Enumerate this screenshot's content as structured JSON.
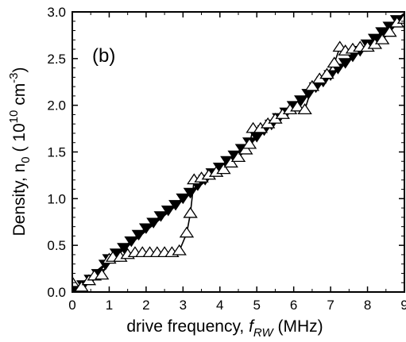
{
  "chart_data": {
    "type": "line",
    "panel_label": "(b)",
    "xlabel_prefix": "drive frequency, ",
    "xlabel_var": "f",
    "xlabel_sub": "RW",
    "xlabel_unit": " (MHz)",
    "ylabel_prefix": "Density, n",
    "ylabel_sub": "0",
    "ylabel_unit_open": " ( 10",
    "ylabel_unit_sup1": "10",
    "ylabel_unit_mid": " cm",
    "ylabel_unit_sup2": "-3",
    "ylabel_unit_close": ")",
    "xlim": [
      0,
      9
    ],
    "ylim": [
      0,
      3.0
    ],
    "xticks": [
      0,
      1,
      2,
      3,
      4,
      5,
      6,
      7,
      8,
      9
    ],
    "yticks": [
      0.0,
      0.5,
      1.0,
      1.5,
      2.0,
      2.5,
      3.0
    ],
    "ytick_labels": [
      "0.0",
      "0.5",
      "1.0",
      "1.5",
      "2.0",
      "2.5",
      "3.0"
    ],
    "xtick_labels": [
      "0",
      "1",
      "2",
      "3",
      "4",
      "5",
      "6",
      "7",
      "8",
      "9"
    ],
    "series": [
      {
        "marker": "triangle-down-filled",
        "points": [
          [
            0.1,
            0.03
          ],
          [
            0.3,
            0.08
          ],
          [
            0.5,
            0.14
          ],
          [
            0.7,
            0.2
          ],
          [
            0.9,
            0.3
          ],
          [
            1.0,
            0.36
          ],
          [
            1.2,
            0.42
          ],
          [
            1.4,
            0.48
          ],
          [
            1.6,
            0.55
          ],
          [
            1.8,
            0.62
          ],
          [
            2.0,
            0.69
          ],
          [
            2.2,
            0.75
          ],
          [
            2.4,
            0.82
          ],
          [
            2.6,
            0.88
          ],
          [
            2.8,
            0.94
          ],
          [
            3.0,
            1.01
          ],
          [
            3.2,
            1.07
          ],
          [
            3.4,
            1.15
          ],
          [
            3.6,
            1.21
          ],
          [
            3.8,
            1.28
          ],
          [
            4.0,
            1.34
          ],
          [
            4.2,
            1.41
          ],
          [
            4.4,
            1.47
          ],
          [
            4.6,
            1.54
          ],
          [
            4.8,
            1.61
          ],
          [
            5.0,
            1.67
          ],
          [
            5.2,
            1.74
          ],
          [
            5.4,
            1.8
          ],
          [
            5.6,
            1.87
          ],
          [
            5.8,
            1.93
          ],
          [
            6.0,
            2.0
          ],
          [
            6.2,
            2.06
          ],
          [
            6.4,
            2.13
          ],
          [
            6.6,
            2.2
          ],
          [
            6.8,
            2.26
          ],
          [
            7.0,
            2.33
          ],
          [
            7.2,
            2.4
          ],
          [
            7.4,
            2.46
          ],
          [
            7.6,
            2.53
          ],
          [
            7.8,
            2.59
          ],
          [
            8.0,
            2.66
          ],
          [
            8.2,
            2.72
          ],
          [
            8.4,
            2.79
          ],
          [
            8.6,
            2.85
          ],
          [
            8.8,
            2.92
          ]
        ]
      },
      {
        "marker": "triangle-up-open",
        "points": [
          [
            0.0,
            0.1
          ],
          [
            0.25,
            0.05
          ],
          [
            0.45,
            0.12
          ],
          [
            0.6,
            0.17
          ],
          [
            0.8,
            0.18
          ],
          [
            1.0,
            0.35
          ],
          [
            1.1,
            0.37
          ],
          [
            1.3,
            0.37
          ],
          [
            1.5,
            0.4
          ],
          [
            1.7,
            0.42
          ],
          [
            1.9,
            0.42
          ],
          [
            2.1,
            0.42
          ],
          [
            2.3,
            0.42
          ],
          [
            2.5,
            0.42
          ],
          [
            2.7,
            0.42
          ],
          [
            2.9,
            0.44
          ],
          [
            3.1,
            0.63
          ],
          [
            3.2,
            0.84
          ],
          [
            3.3,
            1.2
          ],
          [
            3.5,
            1.22
          ],
          [
            3.7,
            1.25
          ],
          [
            3.9,
            1.28
          ],
          [
            4.1,
            1.31
          ],
          [
            4.3,
            1.38
          ],
          [
            4.5,
            1.44
          ],
          [
            4.7,
            1.52
          ],
          [
            4.8,
            1.58
          ],
          [
            4.9,
            1.75
          ],
          [
            5.1,
            1.75
          ],
          [
            5.3,
            1.8
          ],
          [
            5.5,
            1.85
          ],
          [
            5.7,
            1.9
          ],
          [
            5.9,
            1.95
          ],
          [
            6.1,
            1.98
          ],
          [
            6.3,
            1.95
          ],
          [
            6.5,
            2.2
          ],
          [
            6.7,
            2.28
          ],
          [
            6.9,
            2.33
          ],
          [
            7.1,
            2.45
          ],
          [
            7.25,
            2.62
          ],
          [
            7.4,
            2.58
          ],
          [
            7.6,
            2.6
          ],
          [
            7.8,
            2.62
          ],
          [
            8.0,
            2.62
          ],
          [
            8.2,
            2.65
          ],
          [
            8.4,
            2.7
          ],
          [
            8.6,
            2.78
          ],
          [
            8.8,
            2.88
          ],
          [
            9.0,
            2.92
          ]
        ]
      }
    ],
    "fit_line": [
      [
        0.0,
        0.0
      ],
      [
        9.0,
        2.98
      ]
    ]
  }
}
